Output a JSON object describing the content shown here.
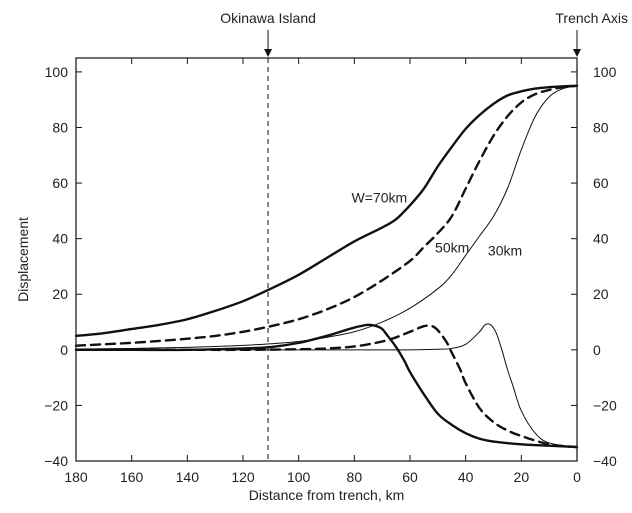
{
  "chart_data": {
    "type": "line",
    "title": "",
    "xlabel": "Distance from trench, km",
    "ylabel": "Displacement",
    "xlim": [
      180,
      0
    ],
    "ylim": [
      -40,
      105
    ],
    "x_ticks": [
      180,
      160,
      140,
      120,
      100,
      80,
      60,
      40,
      20,
      0
    ],
    "y_ticks": [
      -40,
      -20,
      0,
      20,
      40,
      60,
      80,
      100
    ],
    "right_axis_ticks": true,
    "grid": false,
    "colors": {
      "line": "#111111",
      "frame": "#222222",
      "background": "#ffffff"
    },
    "markers": [
      {
        "label": "Okinawa Island",
        "x": 111,
        "style": "dashed"
      },
      {
        "label": "Trench Axis",
        "x": 0,
        "style": "arrow"
      }
    ],
    "series": [
      {
        "name": "W=70km",
        "component": "upper",
        "style": "solid-thick",
        "x": [
          180,
          170,
          160,
          150,
          140,
          130,
          120,
          110,
          100,
          90,
          80,
          70,
          65,
          60,
          55,
          50,
          45,
          40,
          35,
          30,
          25,
          20,
          15,
          10,
          5,
          0
        ],
        "values": [
          5,
          6,
          7.5,
          9,
          11,
          14,
          17.5,
          22,
          27,
          33,
          39,
          44,
          47,
          52,
          58,
          66,
          73,
          79.5,
          84.5,
          88.5,
          91.5,
          93,
          94,
          94.5,
          94.8,
          95
        ]
      },
      {
        "name": "50km",
        "component": "upper",
        "style": "dashed-thick",
        "x": [
          180,
          170,
          160,
          150,
          140,
          130,
          120,
          110,
          100,
          90,
          80,
          70,
          60,
          55,
          50,
          45,
          40,
          35,
          30,
          25,
          20,
          15,
          10,
          5,
          0
        ],
        "values": [
          1.5,
          2,
          2.5,
          3.2,
          4,
          5,
          6.5,
          8.5,
          11,
          14.5,
          19,
          25,
          32,
          37,
          42,
          48,
          58,
          68,
          77,
          84,
          89,
          92,
          93.5,
          94.5,
          95
        ]
      },
      {
        "name": "30km",
        "component": "upper",
        "style": "solid-thin",
        "x": [
          180,
          170,
          160,
          150,
          140,
          130,
          120,
          110,
          100,
          90,
          80,
          70,
          60,
          50,
          45,
          40,
          35,
          30,
          25,
          20,
          15,
          10,
          5,
          0
        ],
        "values": [
          0.3,
          0.4,
          0.5,
          0.7,
          0.9,
          1.2,
          1.6,
          2.2,
          3,
          4.5,
          6.5,
          10,
          15,
          22,
          27,
          34,
          41,
          48,
          58,
          72,
          84,
          91,
          94,
          95
        ]
      },
      {
        "name": "",
        "component": "lower",
        "series_ref": "W=70km",
        "style": "solid-thick",
        "x": [
          180,
          160,
          140,
          120,
          110,
          100,
          90,
          80,
          75,
          72,
          70,
          68,
          65,
          62,
          60,
          55,
          50,
          45,
          40,
          35,
          30,
          20,
          10,
          0
        ],
        "values": [
          0,
          0,
          0,
          0.5,
          1,
          2.5,
          5,
          8,
          9,
          8.5,
          7.5,
          5,
          1,
          -4,
          -8,
          -16,
          -23,
          -27,
          -30,
          -32,
          -33,
          -34,
          -34.5,
          -35
        ]
      },
      {
        "name": "",
        "component": "lower",
        "series_ref": "50km",
        "style": "dashed-thick",
        "x": [
          180,
          140,
          120,
          100,
          90,
          80,
          70,
          65,
          60,
          55,
          52,
          50,
          47,
          45,
          42,
          40,
          35,
          30,
          25,
          20,
          10,
          0
        ],
        "values": [
          0,
          0,
          0,
          0.2,
          0.5,
          1.2,
          3,
          4.5,
          6.5,
          8.5,
          8.5,
          7,
          3,
          -1,
          -7,
          -12,
          -21,
          -26,
          -29,
          -31,
          -34,
          -35
        ]
      },
      {
        "name": "",
        "component": "lower",
        "series_ref": "30km",
        "style": "solid-thin",
        "x": [
          180,
          100,
          80,
          60,
          50,
          45,
          40,
          35,
          33,
          31,
          29,
          27,
          25,
          23,
          20,
          15,
          10,
          0
        ],
        "values": [
          0,
          0,
          0,
          0,
          0.2,
          0.5,
          2,
          6.5,
          9,
          9,
          6,
          0,
          -7,
          -13,
          -22,
          -30,
          -33.5,
          -35
        ]
      }
    ],
    "annotations": [
      {
        "text": "W=70km",
        "x": 81,
        "y": 53
      },
      {
        "text": "50km",
        "x": 51,
        "y": 35
      },
      {
        "text": "30km",
        "x": 32,
        "y": 34
      }
    ]
  }
}
